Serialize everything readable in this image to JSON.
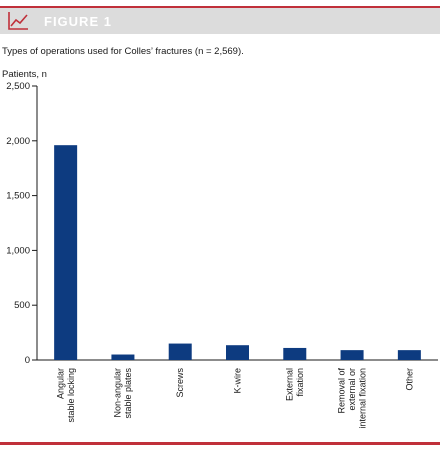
{
  "figure": {
    "label": "FIGURE 1",
    "caption": "Types of operations used for Colles’ fractures (n = 2,569).",
    "icon": "line-chart-icon",
    "accent_color": "#c0303a",
    "header_bg": "#dcdcdc"
  },
  "chart_data": {
    "type": "bar",
    "title": "",
    "ylabel": "Patients, n",
    "xlabel": "",
    "ylim": [
      0,
      2500
    ],
    "yticks": [
      0,
      500,
      1000,
      1500,
      2000,
      2500
    ],
    "ytick_labels": [
      "0",
      "500",
      "1,000",
      "1,500",
      "2,000",
      "2,500"
    ],
    "bar_color": "#0d3b80",
    "grid": false,
    "categories": [
      [
        "Angular",
        "stable locking"
      ],
      [
        "Non-angular",
        "stable plates"
      ],
      [
        "Screws"
      ],
      [
        "K-wire"
      ],
      [
        "External",
        "fixation"
      ],
      [
        "Removal of",
        "external or",
        "internal fixation"
      ],
      [
        "Other"
      ]
    ],
    "values": [
      1960,
      50,
      150,
      135,
      110,
      90,
      90
    ]
  }
}
